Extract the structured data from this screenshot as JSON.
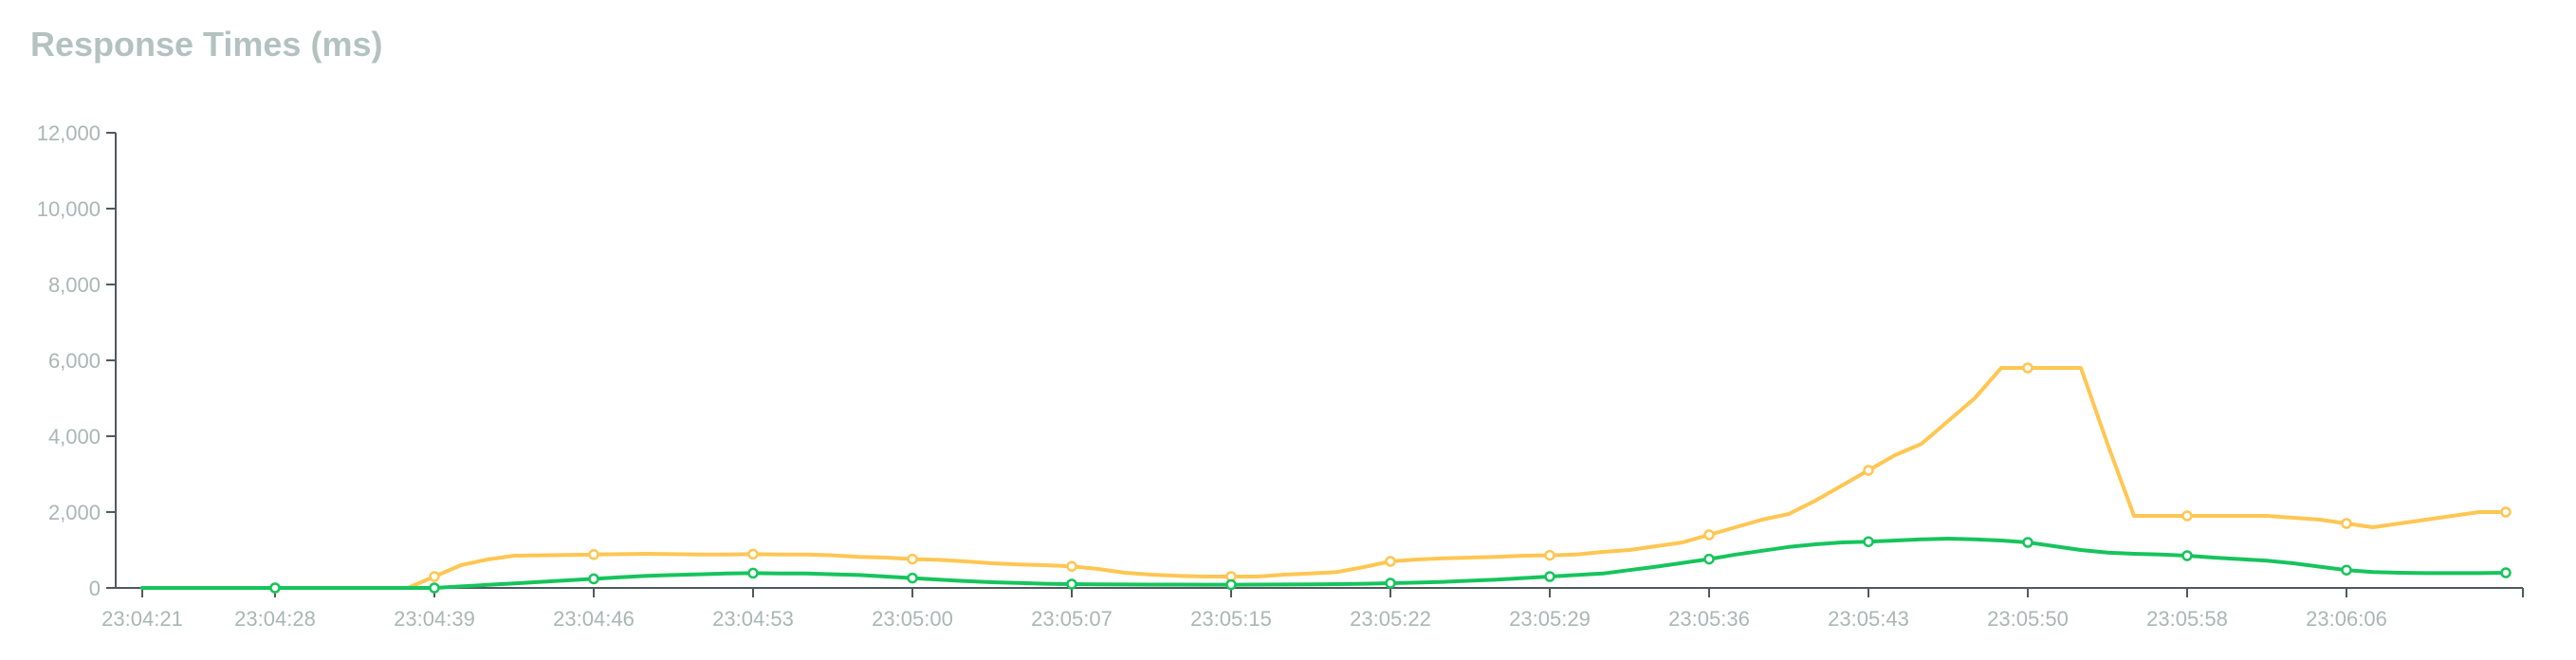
{
  "chart_data": {
    "type": "line",
    "title": "Response Times (ms)",
    "xlabel": "",
    "ylabel": "",
    "ylim": [
      0,
      12000
    ],
    "y_ticks": [
      0,
      2000,
      4000,
      6000,
      8000,
      10000,
      12000
    ],
    "y_tick_labels": [
      "0",
      "2,000",
      "4,000",
      "6,000",
      "8,000",
      "10,000",
      "12,000"
    ],
    "x_tick_labels": [
      "23:04:21",
      "23:04:28",
      "23:04:39",
      "23:04:46",
      "23:04:53",
      "23:05:00",
      "23:05:07",
      "23:05:15",
      "23:05:22",
      "23:05:29",
      "23:05:36",
      "23:05:43",
      "23:05:50",
      "23:05:58",
      "23:06:06"
    ],
    "x_tick_indices": [
      0,
      5,
      11,
      17,
      23,
      29,
      35,
      41,
      47,
      53,
      59,
      65,
      71,
      77,
      83
    ],
    "n_points": 90,
    "grid": false,
    "legend": "none",
    "series": [
      {
        "color": "#ffc652",
        "marker_every": 6,
        "marker_offset": 5,
        "values": [
          0,
          0,
          0,
          0,
          0,
          0,
          0,
          0,
          0,
          0,
          0,
          300,
          600,
          750,
          850,
          860,
          870,
          880,
          890,
          900,
          890,
          880,
          880,
          890,
          880,
          880,
          860,
          820,
          800,
          760,
          740,
          700,
          650,
          620,
          600,
          570,
          500,
          400,
          350,
          320,
          300,
          300,
          300,
          350,
          380,
          420,
          550,
          700,
          750,
          780,
          800,
          820,
          850,
          860,
          880,
          950,
          1000,
          1100,
          1200,
          1400,
          1600,
          1800,
          1950,
          2300,
          2700,
          3100,
          3500,
          3800,
          4400,
          5000,
          5800,
          5800,
          5800,
          5800,
          3800,
          1900,
          1900,
          1900,
          1900,
          1900,
          1900,
          1850,
          1800,
          1700,
          1600,
          1700,
          1800,
          1900,
          2000,
          2000
        ]
      },
      {
        "color": "#16c45c",
        "marker_every": 6,
        "marker_offset": 5,
        "values": [
          0,
          0,
          0,
          0,
          0,
          0,
          0,
          0,
          0,
          0,
          0,
          0,
          40,
          80,
          120,
          160,
          200,
          240,
          280,
          320,
          340,
          360,
          380,
          390,
          380,
          380,
          360,
          340,
          300,
          260,
          220,
          180,
          150,
          130,
          110,
          100,
          95,
          90,
          88,
          87,
          86,
          86,
          87,
          90,
          95,
          100,
          110,
          125,
          140,
          160,
          190,
          220,
          260,
          300,
          340,
          380,
          470,
          560,
          660,
          760,
          880,
          980,
          1080,
          1150,
          1200,
          1220,
          1250,
          1280,
          1300,
          1280,
          1250,
          1200,
          1100,
          1000,
          930,
          900,
          880,
          850,
          800,
          760,
          720,
          650,
          560,
          470,
          420,
          400,
          390,
          390,
          390,
          400
        ]
      }
    ]
  }
}
